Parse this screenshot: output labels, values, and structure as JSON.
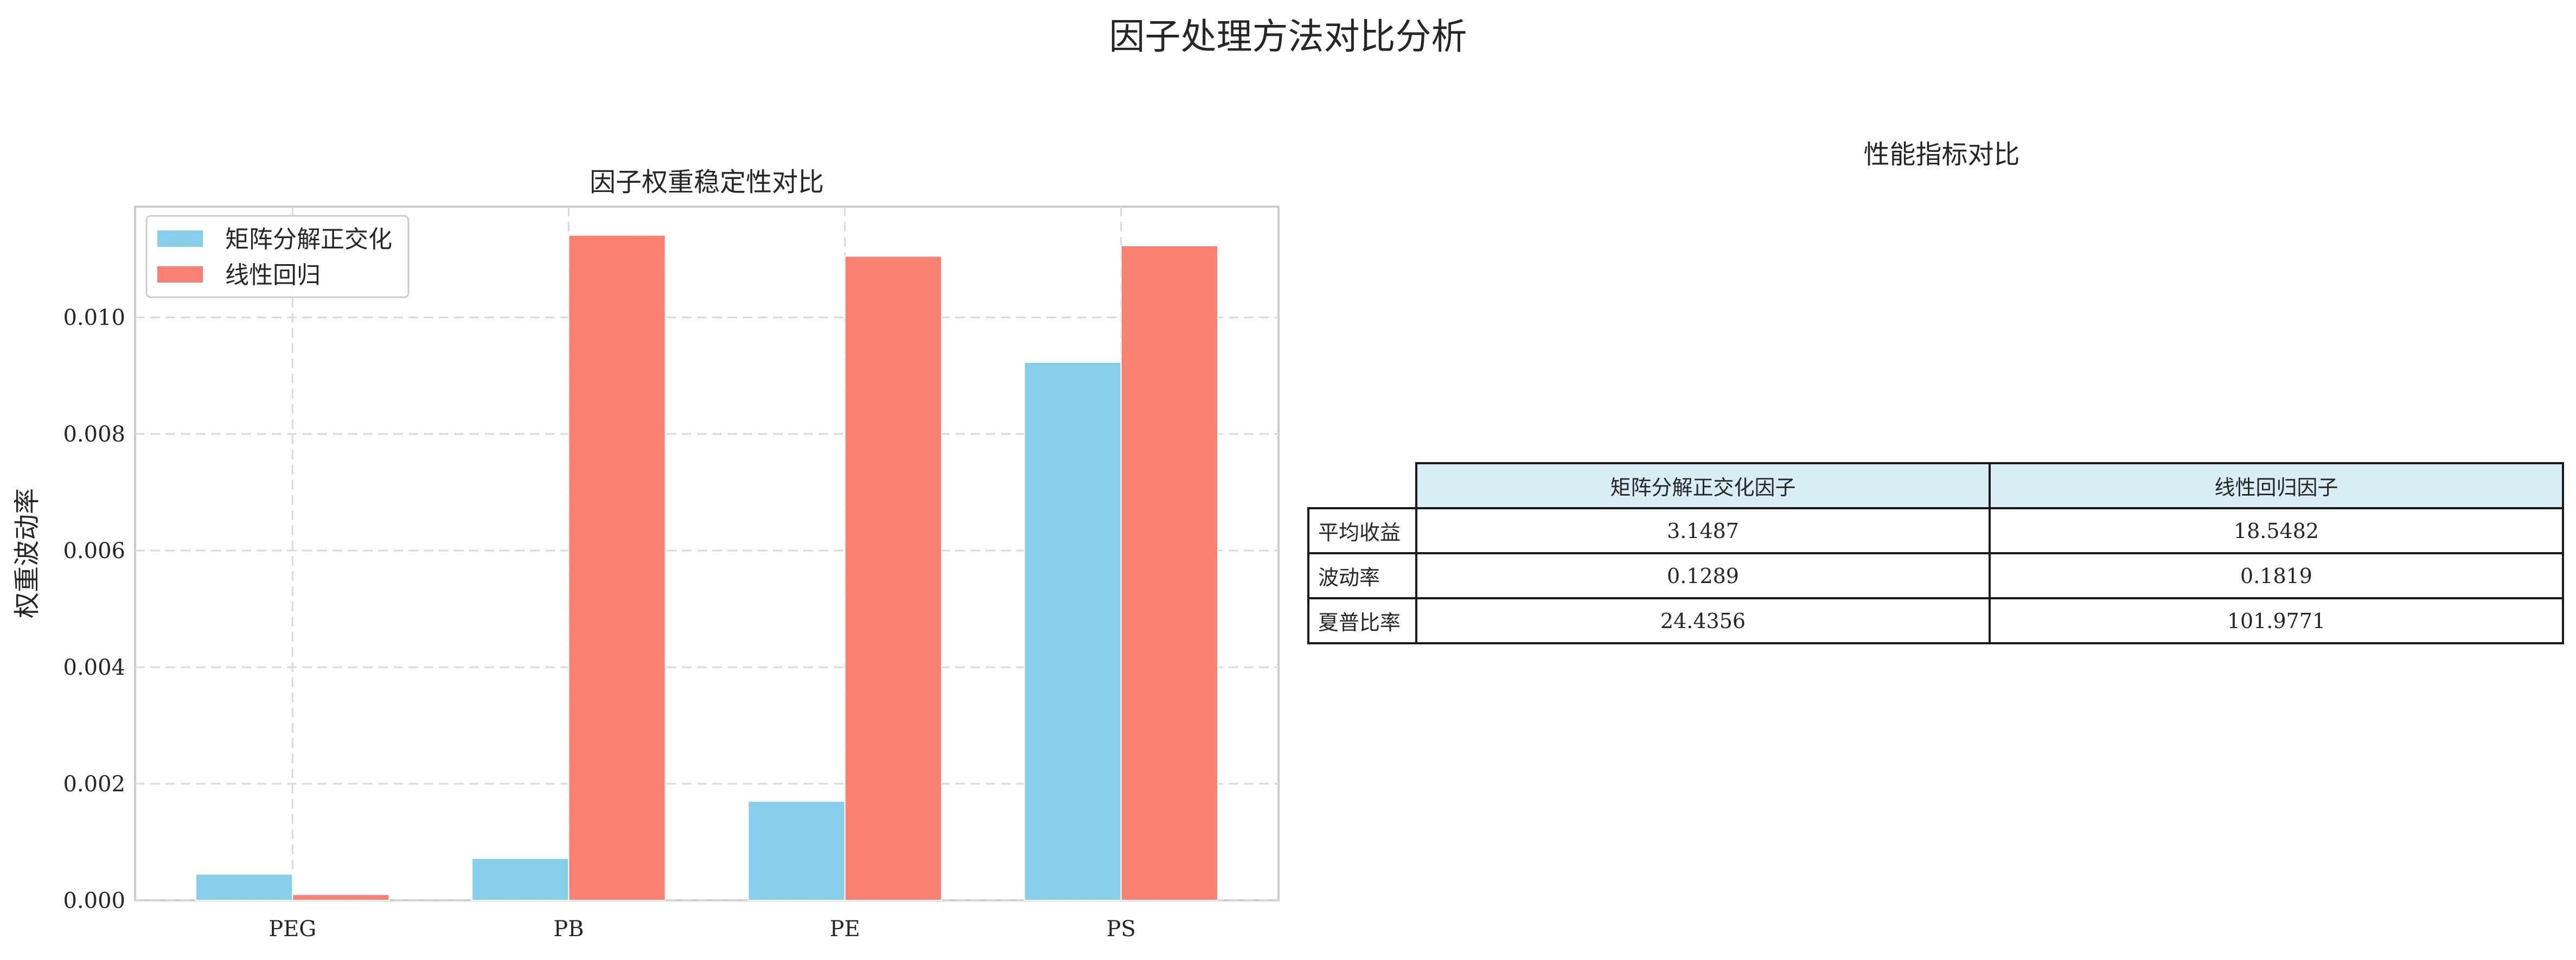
{
  "figure_title": "因子处理方法对比分析",
  "chart_data": [
    {
      "type": "bar",
      "title": "因子权重稳定性对比",
      "xlabel": "",
      "ylabel": "权重波动率",
      "categories": [
        "PEG",
        "PB",
        "PE",
        "PS"
      ],
      "series": [
        {
          "name": "矩阵分解正交化",
          "values": [
            0.00045,
            0.00072,
            0.0017,
            0.00923
          ],
          "color": "#87ceeb"
        },
        {
          "name": "线性回归",
          "values": [
            0.0001,
            0.01141,
            0.01105,
            0.01123
          ],
          "color": "#fa8072"
        }
      ],
      "ylim": [
        0,
        0.0119
      ],
      "yticks": [
        "0.000",
        "0.002",
        "0.004",
        "0.006",
        "0.008",
        "0.010"
      ],
      "ytick_values": [
        0,
        0.002,
        0.004,
        0.006,
        0.008,
        0.01
      ],
      "grid": true,
      "legend": "top-left"
    },
    {
      "type": "table",
      "title": "性能指标对比",
      "columns": [
        "矩阵分解正交化因子",
        "线性回归因子"
      ],
      "rows": [
        {
          "label": "平均收益",
          "values": [
            "3.1487",
            "18.5482"
          ]
        },
        {
          "label": "波动率",
          "values": [
            "0.1289",
            "0.1819"
          ]
        },
        {
          "label": "夏普比率",
          "values": [
            "24.4356",
            "101.9771"
          ]
        }
      ]
    }
  ]
}
